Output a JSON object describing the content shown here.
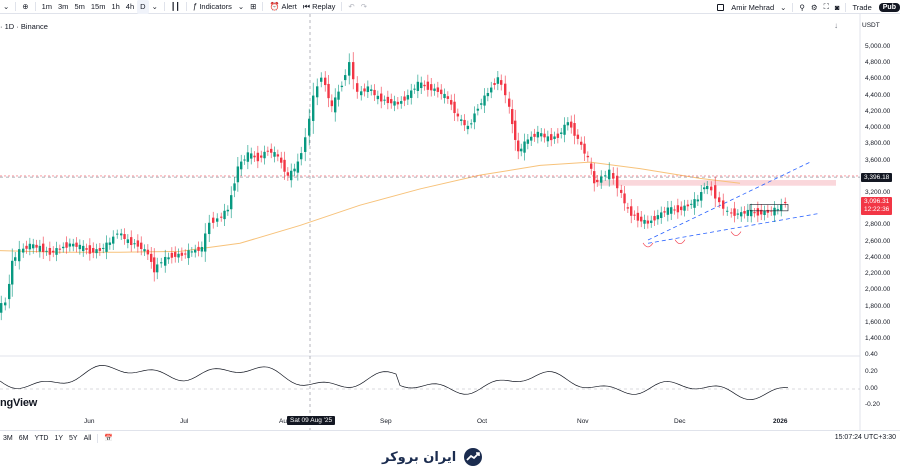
{
  "toolbar": {
    "timeframes": [
      "1m",
      "3m",
      "5m",
      "15m",
      "1h",
      "4h",
      "D"
    ],
    "active_timeframe": "D",
    "indicators_label": "Indicators",
    "alert_label": "Alert",
    "replay_label": "Replay",
    "user_name": "Amir Mehrad",
    "trade_label": "Trade",
    "publish_label": "Pub"
  },
  "chart_header": {
    "symbol_text": "· 1D · Binance",
    "currency": "USDT"
  },
  "price_axis": {
    "ticks": [
      "5,000.00",
      "4,800.00",
      "4,600.00",
      "4,400.00",
      "4,200.00",
      "4,000.00",
      "3,800.00",
      "3,600.00",
      "3,200.00",
      "2,800.00",
      "2,600.00",
      "2,400.00",
      "2,200.00",
      "2,000.00",
      "1,800.00",
      "1,600.00",
      "1,400.00"
    ],
    "crosshair_price": "3,396.18",
    "last_price": "3,096.31",
    "countdown": "12:22:36"
  },
  "indicator_axis": {
    "ticks": [
      "0.40",
      "0.20",
      "0.00",
      "-0.20"
    ]
  },
  "time_axis": {
    "labels": [
      "Jun",
      "Jul",
      "Aug",
      "Sep",
      "Oct",
      "Nov",
      "Dec",
      "2026"
    ],
    "crosshair_date": "Sat 09 Aug '25"
  },
  "watermark": "ngView",
  "bottom": {
    "ranges": [
      "3M",
      "6M",
      "YTD",
      "1Y",
      "5Y",
      "All"
    ],
    "clock": "15:07:24 UTC+3:30"
  },
  "brand": {
    "name": "ایران بروکر"
  },
  "colors": {
    "up": "#089981",
    "down": "#f23645",
    "ma": "#f7c27a",
    "channel": "#2962ff",
    "zone": "#f8c6cc",
    "last_price_bg": "#f23645"
  }
}
